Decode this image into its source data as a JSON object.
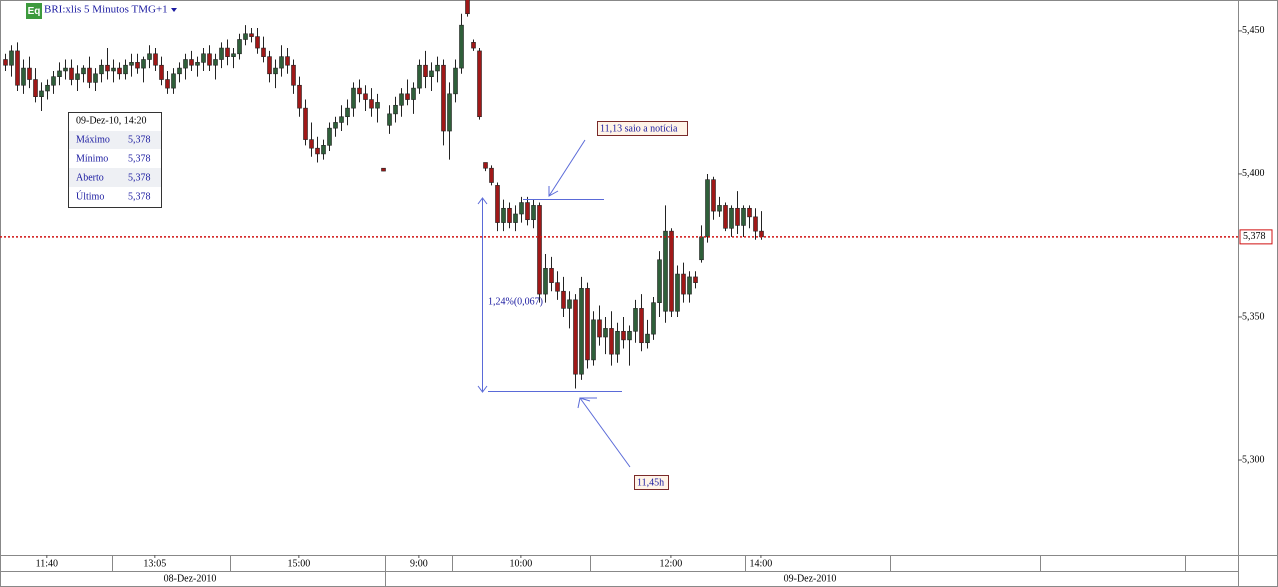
{
  "chart_data": {
    "type": "candlestick",
    "title": "BRI:xlis 5 Minutos TMG+1",
    "badge": "Eq",
    "up_color": "#2f5f3a",
    "down_color": "#a01818",
    "ylim": [
      5.2668,
      5.4608
    ],
    "yticks": [
      {
        "value": 5.45,
        "label": "5,450"
      },
      {
        "value": 5.4,
        "label": "5,400"
      },
      {
        "value": 5.35,
        "label": "5,350"
      },
      {
        "value": 5.3,
        "label": "5,300"
      }
    ],
    "xlim": [
      -0.8,
      205.5
    ],
    "xticks": [
      {
        "value": 7,
        "label": "11:40"
      },
      {
        "value": 25,
        "label": "13:05"
      },
      {
        "value": 49,
        "label": "15:00"
      },
      {
        "value": 69,
        "label": "9:00"
      },
      {
        "value": 86,
        "label": "10:00"
      },
      {
        "value": 111,
        "label": "12:00"
      },
      {
        "value": 126,
        "label": "14:00"
      }
    ],
    "sessions": [
      "08-Dez-2010",
      "09-Dez-2010"
    ],
    "last_price": {
      "value": 5.378,
      "label": "5,378"
    },
    "info_box": {
      "title": "09-Dez-10, 14:20",
      "rows": [
        [
          "Máximo",
          "5,378"
        ],
        [
          "Mínimo",
          "5,378"
        ],
        [
          "Aberto",
          "5,378"
        ],
        [
          "Último",
          "5,378"
        ]
      ]
    },
    "annotations": [
      "11,13 saio a notícia",
      "11,45h",
      "1,24%(0,067)"
    ],
    "candles": [
      {
        "open": 5.44,
        "high": 5.442,
        "low": 5.436,
        "close": 5.438
      },
      {
        "open": 5.438,
        "high": 5.445,
        "low": 5.434,
        "close": 5.443
      },
      {
        "open": 5.443,
        "high": 5.446,
        "low": 5.429,
        "close": 5.431
      },
      {
        "open": 5.431,
        "high": 5.44,
        "low": 5.428,
        "close": 5.437
      },
      {
        "open": 5.437,
        "high": 5.441,
        "low": 5.43,
        "close": 5.433
      },
      {
        "open": 5.433,
        "high": 5.437,
        "low": 5.425,
        "close": 5.427
      },
      {
        "open": 5.427,
        "high": 5.432,
        "low": 5.422,
        "close": 5.429
      },
      {
        "open": 5.429,
        "high": 5.433,
        "low": 5.426,
        "close": 5.431
      },
      {
        "open": 5.431,
        "high": 5.436,
        "low": 5.428,
        "close": 5.434
      },
      {
        "open": 5.434,
        "high": 5.439,
        "low": 5.431,
        "close": 5.436
      },
      {
        "open": 5.436,
        "high": 5.44,
        "low": 5.433,
        "close": 5.437
      },
      {
        "open": 5.437,
        "high": 5.44,
        "low": 5.431,
        "close": 5.433
      },
      {
        "open": 5.433,
        "high": 5.438,
        "low": 5.429,
        "close": 5.435
      },
      {
        "open": 5.435,
        "high": 5.438,
        "low": 5.432,
        "close": 5.437
      },
      {
        "open": 5.437,
        "high": 5.441,
        "low": 5.43,
        "close": 5.432
      },
      {
        "open": 5.432,
        "high": 5.437,
        "low": 5.429,
        "close": 5.435
      },
      {
        "open": 5.435,
        "high": 5.44,
        "low": 5.432,
        "close": 5.438
      },
      {
        "open": 5.438,
        "high": 5.444,
        "low": 5.433,
        "close": 5.436
      },
      {
        "open": 5.436,
        "high": 5.44,
        "low": 5.432,
        "close": 5.437
      },
      {
        "open": 5.437,
        "high": 5.439,
        "low": 5.433,
        "close": 5.435
      },
      {
        "open": 5.435,
        "high": 5.44,
        "low": 5.433,
        "close": 5.438
      },
      {
        "open": 5.438,
        "high": 5.442,
        "low": 5.434,
        "close": 5.439
      },
      {
        "open": 5.439,
        "high": 5.442,
        "low": 5.435,
        "close": 5.437
      },
      {
        "open": 5.437,
        "high": 5.441,
        "low": 5.432,
        "close": 5.44
      },
      {
        "open": 5.44,
        "high": 5.445,
        "low": 5.437,
        "close": 5.442
      },
      {
        "open": 5.442,
        "high": 5.444,
        "low": 5.436,
        "close": 5.438
      },
      {
        "open": 5.438,
        "high": 5.441,
        "low": 5.431,
        "close": 5.433
      },
      {
        "open": 5.433,
        "high": 5.436,
        "low": 5.428,
        "close": 5.43
      },
      {
        "open": 5.43,
        "high": 5.437,
        "low": 5.428,
        "close": 5.435
      },
      {
        "open": 5.435,
        "high": 5.439,
        "low": 5.432,
        "close": 5.437
      },
      {
        "open": 5.437,
        "high": 5.442,
        "low": 5.433,
        "close": 5.44
      },
      {
        "open": 5.44,
        "high": 5.443,
        "low": 5.436,
        "close": 5.438
      },
      {
        "open": 5.438,
        "high": 5.441,
        "low": 5.434,
        "close": 5.439
      },
      {
        "open": 5.439,
        "high": 5.444,
        "low": 5.436,
        "close": 5.442
      },
      {
        "open": 5.442,
        "high": 5.445,
        "low": 5.436,
        "close": 5.438
      },
      {
        "open": 5.438,
        "high": 5.442,
        "low": 5.433,
        "close": 5.44
      },
      {
        "open": 5.44,
        "high": 5.446,
        "low": 5.437,
        "close": 5.444
      },
      {
        "open": 5.444,
        "high": 5.447,
        "low": 5.438,
        "close": 5.441
      },
      {
        "open": 5.441,
        "high": 5.444,
        "low": 5.437,
        "close": 5.442
      },
      {
        "open": 5.442,
        "high": 5.449,
        "low": 5.44,
        "close": 5.447
      },
      {
        "open": 5.447,
        "high": 5.452,
        "low": 5.445,
        "close": 5.449
      },
      {
        "open": 5.449,
        "high": 5.451,
        "low": 5.446,
        "close": 5.448
      },
      {
        "open": 5.448,
        "high": 5.451,
        "low": 5.442,
        "close": 5.444
      },
      {
        "open": 5.444,
        "high": 5.448,
        "low": 5.439,
        "close": 5.441
      },
      {
        "open": 5.441,
        "high": 5.443,
        "low": 5.432,
        "close": 5.435
      },
      {
        "open": 5.435,
        "high": 5.44,
        "low": 5.43,
        "close": 5.437
      },
      {
        "open": 5.437,
        "high": 5.445,
        "low": 5.434,
        "close": 5.441
      },
      {
        "open": 5.441,
        "high": 5.444,
        "low": 5.435,
        "close": 5.438
      },
      {
        "open": 5.438,
        "high": 5.44,
        "low": 5.428,
        "close": 5.431
      },
      {
        "open": 5.431,
        "high": 5.434,
        "low": 5.42,
        "close": 5.423
      },
      {
        "open": 5.423,
        "high": 5.426,
        "low": 5.41,
        "close": 5.412
      },
      {
        "open": 5.412,
        "high": 5.418,
        "low": 5.406,
        "close": 5.409
      },
      {
        "open": 5.409,
        "high": 5.413,
        "low": 5.404,
        "close": 5.407
      },
      {
        "open": 5.407,
        "high": 5.412,
        "low": 5.405,
        "close": 5.41
      },
      {
        "open": 5.41,
        "high": 5.418,
        "low": 5.408,
        "close": 5.416
      },
      {
        "open": 5.416,
        "high": 5.42,
        "low": 5.413,
        "close": 5.418
      },
      {
        "open": 5.418,
        "high": 5.424,
        "low": 5.415,
        "close": 5.42
      },
      {
        "open": 5.42,
        "high": 5.426,
        "low": 5.417,
        "close": 5.423
      },
      {
        "open": 5.423,
        "high": 5.432,
        "low": 5.42,
        "close": 5.43
      },
      {
        "open": 5.43,
        "high": 5.433,
        "low": 5.425,
        "close": 5.428
      },
      {
        "open": 5.428,
        "high": 5.431,
        "low": 5.422,
        "close": 5.426
      },
      {
        "open": 5.426,
        "high": 5.43,
        "low": 5.42,
        "close": 5.423
      },
      {
        "open": 5.423,
        "high": 5.428,
        "low": 5.418,
        "close": 5.425
      },
      {
        "open": 5.402,
        "high": 5.402,
        "low": 5.401,
        "close": 5.401
      },
      {
        "open": 5.417,
        "high": 5.424,
        "low": 5.414,
        "close": 5.421
      },
      {
        "open": 5.421,
        "high": 5.427,
        "low": 5.418,
        "close": 5.424
      },
      {
        "open": 5.424,
        "high": 5.43,
        "low": 5.42,
        "close": 5.428
      },
      {
        "open": 5.428,
        "high": 5.433,
        "low": 5.424,
        "close": 5.426
      },
      {
        "open": 5.426,
        "high": 5.432,
        "low": 5.421,
        "close": 5.43
      },
      {
        "open": 5.43,
        "high": 5.44,
        "low": 5.428,
        "close": 5.438
      },
      {
        "open": 5.438,
        "high": 5.443,
        "low": 5.43,
        "close": 5.434
      },
      {
        "open": 5.434,
        "high": 5.439,
        "low": 5.429,
        "close": 5.436
      },
      {
        "open": 5.436,
        "high": 5.441,
        "low": 5.432,
        "close": 5.438
      },
      {
        "open": 5.438,
        "high": 5.44,
        "low": 5.41,
        "close": 5.415
      },
      {
        "open": 5.415,
        "high": 5.432,
        "low": 5.405,
        "close": 5.428
      },
      {
        "open": 5.428,
        "high": 5.44,
        "low": 5.425,
        "close": 5.437
      },
      {
        "open": 5.437,
        "high": 5.456,
        "low": 5.435,
        "close": 5.452
      },
      {
        "open": 5.461,
        "high": 5.461,
        "low": 5.455,
        "close": 5.456
      },
      {
        "open": 5.446,
        "high": 5.447,
        "low": 5.443,
        "close": 5.444
      },
      {
        "open": 5.443,
        "high": 5.444,
        "low": 5.419,
        "close": 5.42
      },
      {
        "open": 5.404,
        "high": 5.404,
        "low": 5.401,
        "close": 5.402
      },
      {
        "open": 5.402,
        "high": 5.403,
        "low": 5.396,
        "close": 5.397
      },
      {
        "open": 5.396,
        "high": 5.397,
        "low": 5.38,
        "close": 5.383
      },
      {
        "open": 5.383,
        "high": 5.391,
        "low": 5.38,
        "close": 5.388
      },
      {
        "open": 5.388,
        "high": 5.39,
        "low": 5.381,
        "close": 5.383
      },
      {
        "open": 5.383,
        "high": 5.389,
        "low": 5.38,
        "close": 5.386
      },
      {
        "open": 5.386,
        "high": 5.392,
        "low": 5.383,
        "close": 5.39
      },
      {
        "open": 5.39,
        "high": 5.392,
        "low": 5.382,
        "close": 5.384
      },
      {
        "open": 5.384,
        "high": 5.391,
        "low": 5.381,
        "close": 5.389
      },
      {
        "open": 5.389,
        "high": 5.39,
        "low": 5.355,
        "close": 5.358
      },
      {
        "open": 5.358,
        "high": 5.372,
        "low": 5.355,
        "close": 5.367
      },
      {
        "open": 5.367,
        "high": 5.371,
        "low": 5.359,
        "close": 5.362
      },
      {
        "open": 5.362,
        "high": 5.366,
        "low": 5.356,
        "close": 5.359
      },
      {
        "open": 5.359,
        "high": 5.364,
        "low": 5.35,
        "close": 5.353
      },
      {
        "open": 5.353,
        "high": 5.359,
        "low": 5.346,
        "close": 5.356
      },
      {
        "open": 5.356,
        "high": 5.358,
        "low": 5.325,
        "close": 5.33
      },
      {
        "open": 5.33,
        "high": 5.364,
        "low": 5.328,
        "close": 5.36
      },
      {
        "open": 5.36,
        "high": 5.362,
        "low": 5.332,
        "close": 5.335
      },
      {
        "open": 5.335,
        "high": 5.352,
        "low": 5.333,
        "close": 5.349
      },
      {
        "open": 5.349,
        "high": 5.354,
        "low": 5.34,
        "close": 5.343
      },
      {
        "open": 5.343,
        "high": 5.35,
        "low": 5.337,
        "close": 5.346
      },
      {
        "open": 5.346,
        "high": 5.352,
        "low": 5.333,
        "close": 5.337
      },
      {
        "open": 5.337,
        "high": 5.348,
        "low": 5.334,
        "close": 5.345
      },
      {
        "open": 5.345,
        "high": 5.35,
        "low": 5.339,
        "close": 5.342
      },
      {
        "open": 5.342,
        "high": 5.347,
        "low": 5.333,
        "close": 5.345
      },
      {
        "open": 5.345,
        "high": 5.356,
        "low": 5.341,
        "close": 5.353
      },
      {
        "open": 5.353,
        "high": 5.358,
        "low": 5.338,
        "close": 5.341
      },
      {
        "open": 5.341,
        "high": 5.349,
        "low": 5.339,
        "close": 5.344
      },
      {
        "open": 5.344,
        "high": 5.357,
        "low": 5.342,
        "close": 5.355
      },
      {
        "open": 5.355,
        "high": 5.373,
        "low": 5.35,
        "close": 5.37
      },
      {
        "open": 5.352,
        "high": 5.389,
        "low": 5.348,
        "close": 5.38
      },
      {
        "open": 5.38,
        "high": 5.381,
        "low": 5.35,
        "close": 5.352
      },
      {
        "open": 5.352,
        "high": 5.368,
        "low": 5.35,
        "close": 5.365
      },
      {
        "open": 5.365,
        "high": 5.369,
        "low": 5.355,
        "close": 5.358
      },
      {
        "open": 5.358,
        "high": 5.366,
        "low": 5.355,
        "close": 5.364
      },
      {
        "open": 5.364,
        "high": 5.366,
        "low": 5.36,
        "close": 5.362
      },
      {
        "open": 5.37,
        "high": 5.382,
        "low": 5.369,
        "close": 5.378
      },
      {
        "open": 5.378,
        "high": 5.4,
        "low": 5.376,
        "close": 5.398
      },
      {
        "open": 5.398,
        "high": 5.399,
        "low": 5.384,
        "close": 5.387
      },
      {
        "open": 5.387,
        "high": 5.392,
        "low": 5.385,
        "close": 5.389
      },
      {
        "open": 5.389,
        "high": 5.39,
        "low": 5.38,
        "close": 5.381
      },
      {
        "open": 5.381,
        "high": 5.389,
        "low": 5.378,
        "close": 5.388
      },
      {
        "open": 5.388,
        "high": 5.394,
        "low": 5.379,
        "close": 5.382
      },
      {
        "open": 5.382,
        "high": 5.389,
        "low": 5.378,
        "close": 5.388
      },
      {
        "open": 5.388,
        "high": 5.389,
        "low": 5.381,
        "close": 5.385
      },
      {
        "open": 5.385,
        "high": 5.388,
        "low": 5.377,
        "close": 5.38
      },
      {
        "open": 5.38,
        "high": 5.387,
        "low": 5.377,
        "close": 5.378
      }
    ]
  }
}
